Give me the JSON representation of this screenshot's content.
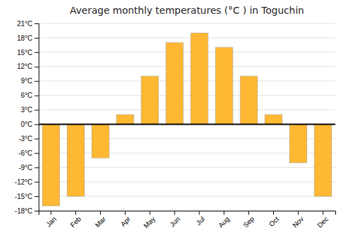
{
  "chart_data": {
    "type": "bar",
    "title": "Average monthly temperatures (°C ) in Toguchin",
    "categories": [
      "Jan",
      "Feb",
      "Mar",
      "Apr",
      "May",
      "Jun",
      "Jul",
      "Aug",
      "Sep",
      "Oct",
      "Nov",
      "Dec"
    ],
    "values": [
      -17,
      -15,
      -7,
      2,
      10,
      17,
      19,
      16,
      10,
      2,
      -8,
      -15
    ],
    "color": "#FFB833",
    "ylim": [
      -18,
      21
    ],
    "yticks": [
      {
        "value": -18,
        "label": "-18°C"
      },
      {
        "value": -15,
        "label": "-15°C"
      },
      {
        "value": -12,
        "label": "-12°C"
      },
      {
        "value": -9,
        "label": "-9°C"
      },
      {
        "value": -6,
        "label": "-6°C"
      },
      {
        "value": -3,
        "label": "-3°C"
      },
      {
        "value": 0,
        "label": "0°C"
      },
      {
        "value": 3,
        "label": "3°C"
      },
      {
        "value": 6,
        "label": "6°C"
      },
      {
        "value": 9,
        "label": "9°C"
      },
      {
        "value": 12,
        "label": "12°C"
      },
      {
        "value": 15,
        "label": "15°C"
      },
      {
        "value": 18,
        "label": "18°C"
      },
      {
        "value": 21,
        "label": "21°C"
      }
    ],
    "grid": true
  }
}
